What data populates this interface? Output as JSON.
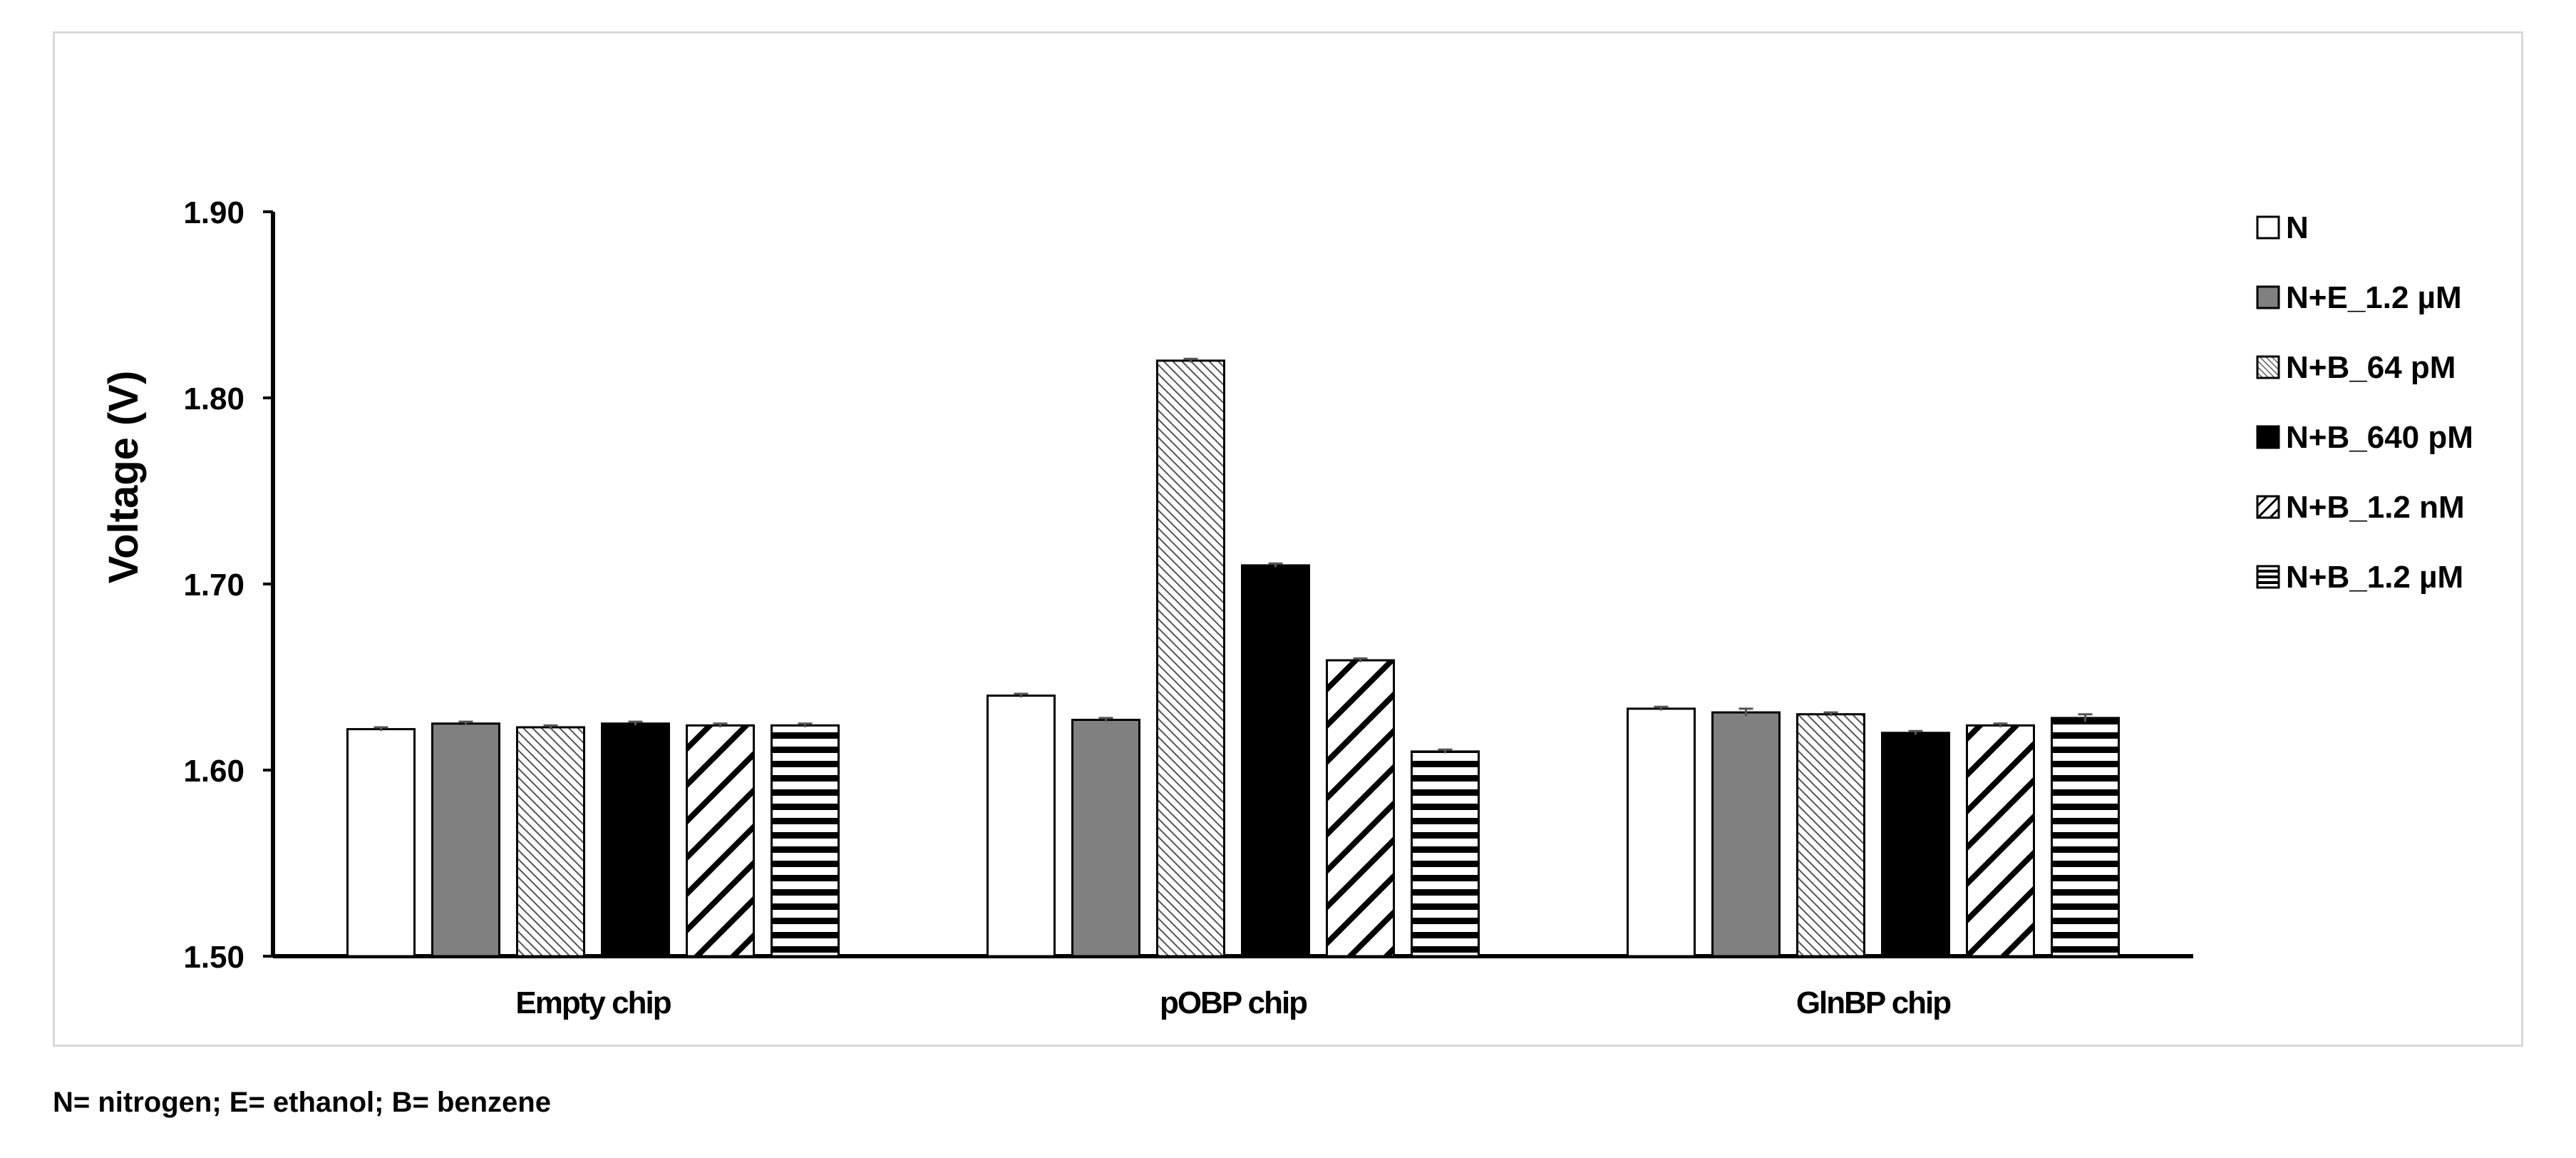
{
  "footnote": "N= nitrogen; E= ethanol; B= benzene",
  "chart_data": {
    "type": "bar",
    "title": "",
    "xlabel": "",
    "ylabel": "Voltage (V)",
    "ylim": [
      1.5,
      1.9
    ],
    "yticks": [
      "1.50",
      "1.60",
      "1.70",
      "1.80",
      "1.90"
    ],
    "grid": false,
    "legend_position": "right",
    "categories": [
      "Empty chip",
      "pOBP chip",
      "GlnBP chip"
    ],
    "series": [
      {
        "name": "N",
        "values": [
          1.622,
          1.64,
          1.633
        ],
        "errors": [
          0.001,
          0.001,
          0.001
        ],
        "pattern": "white"
      },
      {
        "name": "N+E_1.2 µM",
        "values": [
          1.625,
          1.627,
          1.631
        ],
        "errors": [
          0.001,
          0.001,
          0.002
        ],
        "pattern": "gray"
      },
      {
        "name": "N+B_64 pM",
        "values": [
          1.623,
          1.82,
          1.63
        ],
        "errors": [
          0.001,
          0.001,
          0.001
        ],
        "pattern": "fine-diagonal"
      },
      {
        "name": "N+B_640 pM",
        "values": [
          1.625,
          1.71,
          1.62
        ],
        "errors": [
          0.001,
          0.001,
          0.001
        ],
        "pattern": "black"
      },
      {
        "name": "N+B_1.2 nM",
        "values": [
          1.624,
          1.659,
          1.624
        ],
        "errors": [
          0.001,
          0.001,
          0.001
        ],
        "pattern": "wide-diagonal"
      },
      {
        "name": "N+B_1.2 µM",
        "values": [
          1.624,
          1.61,
          1.628
        ],
        "errors": [
          0.001,
          0.001,
          0.002
        ],
        "pattern": "horizontal"
      }
    ],
    "colors": {
      "gray": "#808080",
      "black": "#000000",
      "axis": "#000000"
    }
  }
}
